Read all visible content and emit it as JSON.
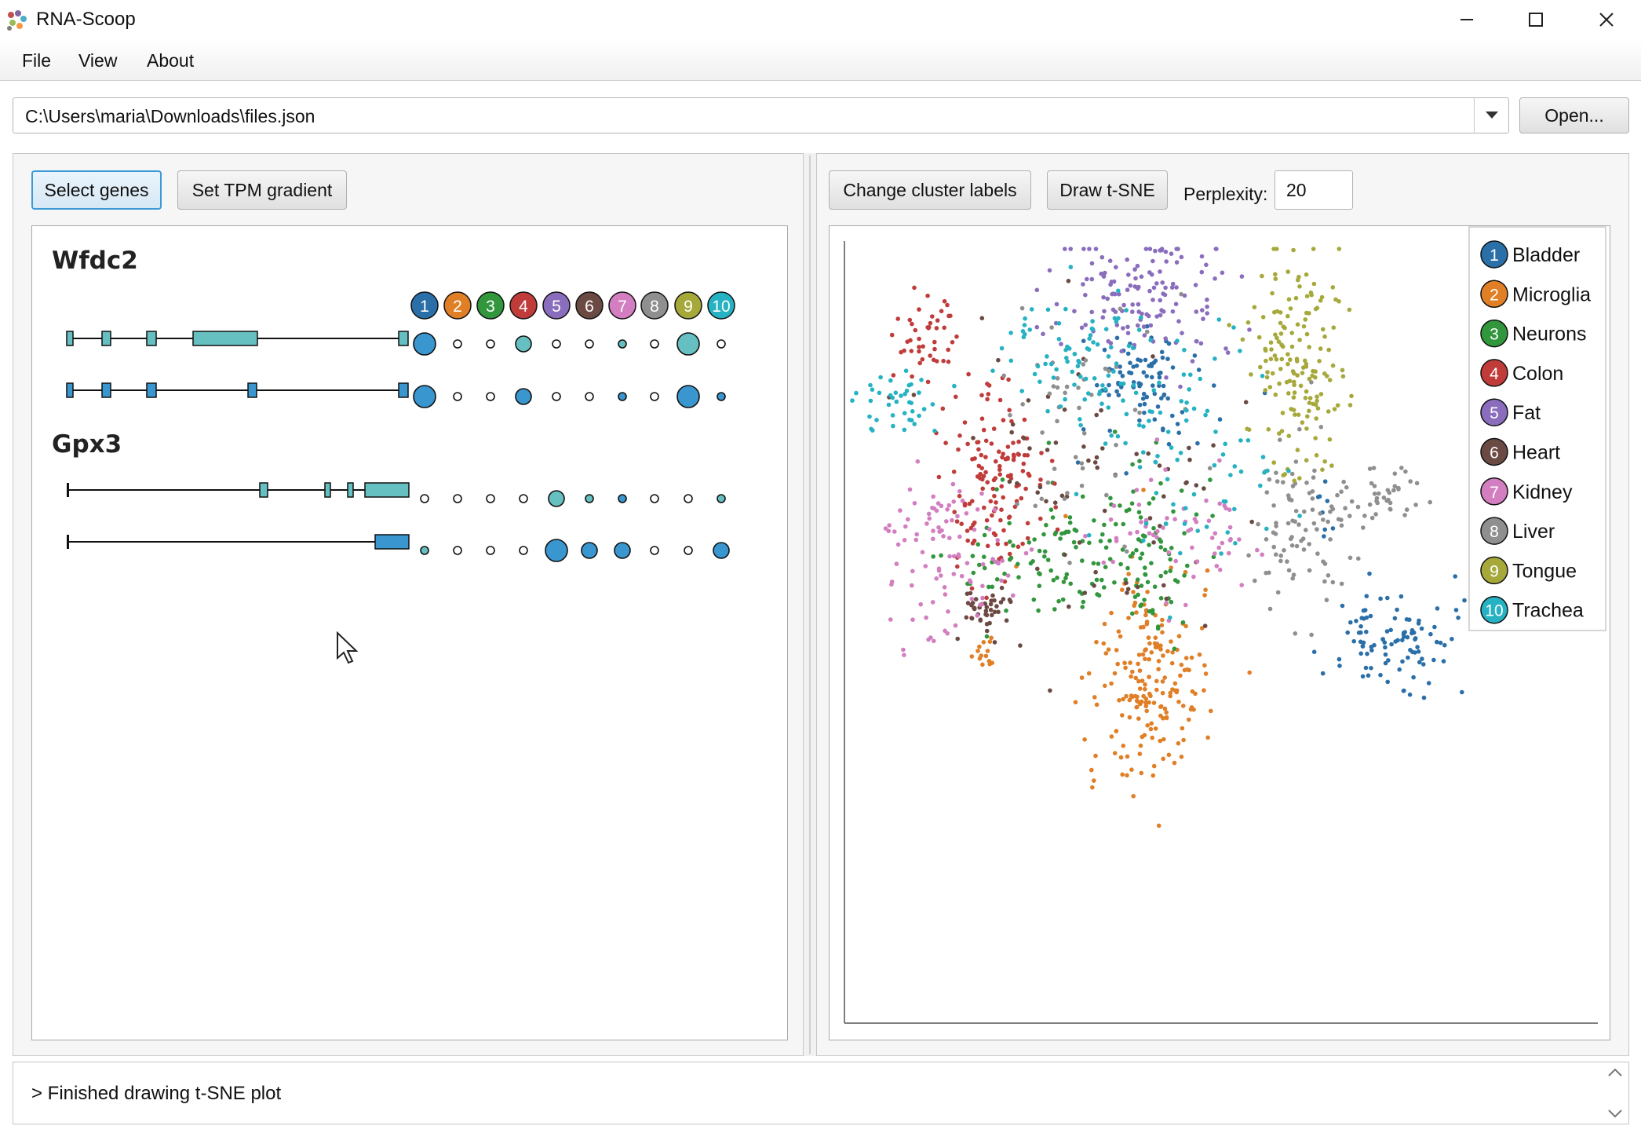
{
  "window": {
    "title": "RNA-Scoop"
  },
  "menu": {
    "file": "File",
    "view": "View",
    "about": "About"
  },
  "path": {
    "value": "C:\\Users\\maria\\Downloads\\files.json",
    "open_label": "Open..."
  },
  "left_toolbar": {
    "select_genes": "Select genes",
    "set_tpm": "Set TPM gradient"
  },
  "right_toolbar": {
    "change_labels": "Change cluster labels",
    "draw_tsne": "Draw t-SNE",
    "perplexity_label": "Perplexity:",
    "perplexity_value": "20"
  },
  "genes": [
    {
      "name": "Wfdc2",
      "isoforms": [
        {
          "tpm_dots": [
            {
              "size": "large",
              "shade": "dark"
            },
            {
              "size": "small",
              "shade": "none"
            },
            {
              "size": "small",
              "shade": "none"
            },
            {
              "size": "medium",
              "shade": "light"
            },
            {
              "size": "small",
              "shade": "none"
            },
            {
              "size": "small",
              "shade": "none"
            },
            {
              "size": "small",
              "shade": "light"
            },
            {
              "size": "small",
              "shade": "none"
            },
            {
              "size": "large",
              "shade": "light"
            },
            {
              "size": "small",
              "shade": "none"
            }
          ]
        },
        {
          "tpm_dots": [
            {
              "size": "large",
              "shade": "dark"
            },
            {
              "size": "small",
              "shade": "none"
            },
            {
              "size": "small",
              "shade": "none"
            },
            {
              "size": "medium",
              "shade": "dark"
            },
            {
              "size": "small",
              "shade": "none"
            },
            {
              "size": "small",
              "shade": "none"
            },
            {
              "size": "small",
              "shade": "dark"
            },
            {
              "size": "small",
              "shade": "none"
            },
            {
              "size": "large",
              "shade": "dark"
            },
            {
              "size": "small",
              "shade": "dark"
            }
          ]
        }
      ]
    },
    {
      "name": "Gpx3",
      "isoforms": [
        {
          "tpm_dots": [
            {
              "size": "small",
              "shade": "none"
            },
            {
              "size": "small",
              "shade": "none"
            },
            {
              "size": "small",
              "shade": "none"
            },
            {
              "size": "small",
              "shade": "none"
            },
            {
              "size": "medium",
              "shade": "light"
            },
            {
              "size": "small",
              "shade": "light"
            },
            {
              "size": "small",
              "shade": "dark"
            },
            {
              "size": "small",
              "shade": "none"
            },
            {
              "size": "small",
              "shade": "none"
            },
            {
              "size": "small",
              "shade": "light"
            }
          ]
        },
        {
          "tpm_dots": [
            {
              "size": "small",
              "shade": "light"
            },
            {
              "size": "small",
              "shade": "none"
            },
            {
              "size": "small",
              "shade": "none"
            },
            {
              "size": "small",
              "shade": "none"
            },
            {
              "size": "large",
              "shade": "dark"
            },
            {
              "size": "medium",
              "shade": "dark"
            },
            {
              "size": "medium",
              "shade": "dark"
            },
            {
              "size": "small",
              "shade": "none"
            },
            {
              "size": "small",
              "shade": "none"
            },
            {
              "size": "medium",
              "shade": "dark"
            }
          ]
        }
      ]
    }
  ],
  "tpm_colors": {
    "dark": "#3a96cf",
    "light": "#66bfc0",
    "none": "#ffffff"
  },
  "clusters": [
    {
      "id": "1",
      "label": "Bladder",
      "color": "#2b6fa8"
    },
    {
      "id": "2",
      "label": "Microglia",
      "color": "#e07f26"
    },
    {
      "id": "3",
      "label": "Neurons",
      "color": "#31963c"
    },
    {
      "id": "4",
      "label": "Colon",
      "color": "#c03c3a"
    },
    {
      "id": "5",
      "label": "Fat",
      "color": "#8a6dbd"
    },
    {
      "id": "6",
      "label": "Heart",
      "color": "#6b4a43"
    },
    {
      "id": "7",
      "label": "Kidney",
      "color": "#d27ec0"
    },
    {
      "id": "8",
      "label": "Liver",
      "color": "#8f8f8f"
    },
    {
      "id": "9",
      "label": "Tongue",
      "color": "#a6a93a"
    },
    {
      "id": "10",
      "label": "Trachea",
      "color": "#25b2c2"
    }
  ],
  "console": {
    "message": "> Finished drawing t-SNE plot"
  }
}
